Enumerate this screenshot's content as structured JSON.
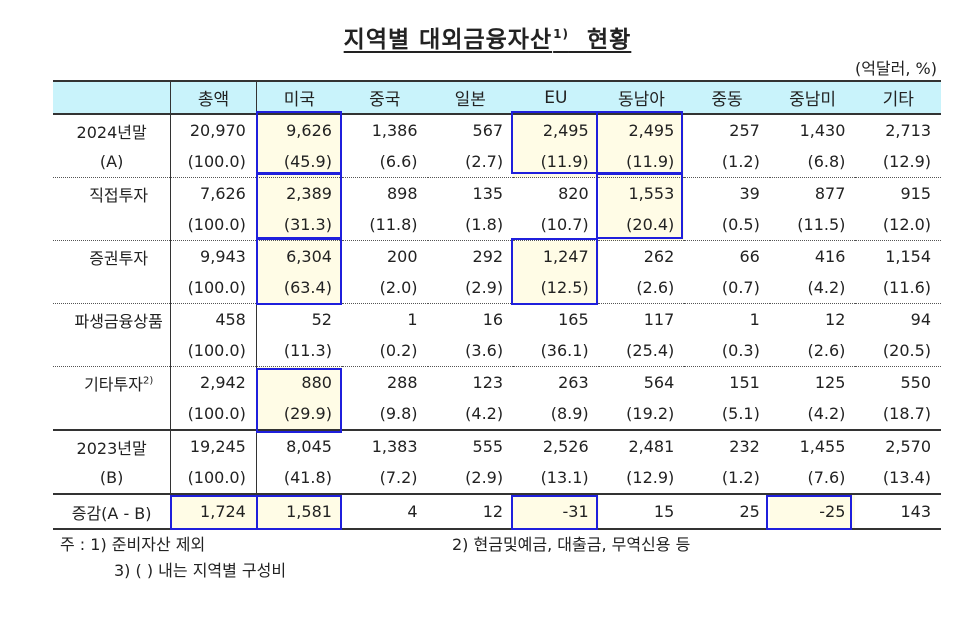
{
  "title": {
    "text": "지역별 대외금융자산",
    "sup": "1)",
    "suffix": "현황"
  },
  "unit": "(억달러, %)",
  "columns": [
    "",
    "총액",
    "미국",
    "중국",
    "일본",
    "EU",
    "동남아",
    "중동",
    "중남미",
    "기타"
  ],
  "rows": [
    {
      "label": "2024년말",
      "sublabel": "(A)",
      "values": [
        "20,970",
        "9,626",
        "1,386",
        "567",
        "2,495",
        "2,495",
        "257",
        "1,430",
        "2,713"
      ],
      "shares": [
        "(100.0)",
        "(45.9)",
        "(6.6)",
        "(2.7)",
        "(11.9)",
        "(11.9)",
        "(1.2)",
        "(6.8)",
        "(12.9)"
      ]
    },
    {
      "label": "직접투자",
      "sublabel": "",
      "values": [
        "7,626",
        "2,389",
        "898",
        "135",
        "820",
        "1,553",
        "39",
        "877",
        "915"
      ],
      "shares": [
        "(100.0)",
        "(31.3)",
        "(11.8)",
        "(1.8)",
        "(10.7)",
        "(20.4)",
        "(0.5)",
        "(11.5)",
        "(12.0)"
      ]
    },
    {
      "label": "증권투자",
      "sublabel": "",
      "values": [
        "9,943",
        "6,304",
        "200",
        "292",
        "1,247",
        "262",
        "66",
        "416",
        "1,154"
      ],
      "shares": [
        "(100.0)",
        "(63.4)",
        "(2.0)",
        "(2.9)",
        "(12.5)",
        "(2.6)",
        "(0.7)",
        "(4.2)",
        "(11.6)"
      ]
    },
    {
      "label": "파생금융상품",
      "sublabel": "",
      "values": [
        "458",
        "52",
        "1",
        "16",
        "165",
        "117",
        "1",
        "12",
        "94"
      ],
      "shares": [
        "(100.0)",
        "(11.3)",
        "(0.2)",
        "(3.6)",
        "(36.1)",
        "(25.4)",
        "(0.3)",
        "(2.6)",
        "(20.5)"
      ]
    },
    {
      "label": "기타투자",
      "label_sup": "2)",
      "sublabel": "",
      "values": [
        "2,942",
        "880",
        "288",
        "123",
        "263",
        "564",
        "151",
        "125",
        "550"
      ],
      "shares": [
        "(100.0)",
        "(29.9)",
        "(9.8)",
        "(4.2)",
        "(8.9)",
        "(19.2)",
        "(5.1)",
        "(4.2)",
        "(18.7)"
      ]
    },
    {
      "label": "2023년말",
      "sublabel": "(B)",
      "values": [
        "19,245",
        "8,045",
        "1,383",
        "555",
        "2,526",
        "2,481",
        "232",
        "1,455",
        "2,570"
      ],
      "shares": [
        "(100.0)",
        "(41.8)",
        "(7.2)",
        "(2.9)",
        "(13.1)",
        "(12.9)",
        "(1.2)",
        "(7.6)",
        "(13.4)"
      ]
    }
  ],
  "change": {
    "label": "증감(A - B)",
    "values": [
      "1,724",
      "1,581",
      "4",
      "12",
      "-31",
      "15",
      "25",
      "-25",
      "143"
    ]
  },
  "notes": {
    "n1": "주 : 1) 준비자산 제외",
    "n2": "2) 현금및예금, 대출금, 무역신용 등",
    "n3": "3) (  ) 내는 지역별 구성비"
  },
  "colors": {
    "header_bg": "#c9f3fb",
    "highlight_bg": "#fffce6",
    "highlight_border": "#1f1fdc"
  }
}
